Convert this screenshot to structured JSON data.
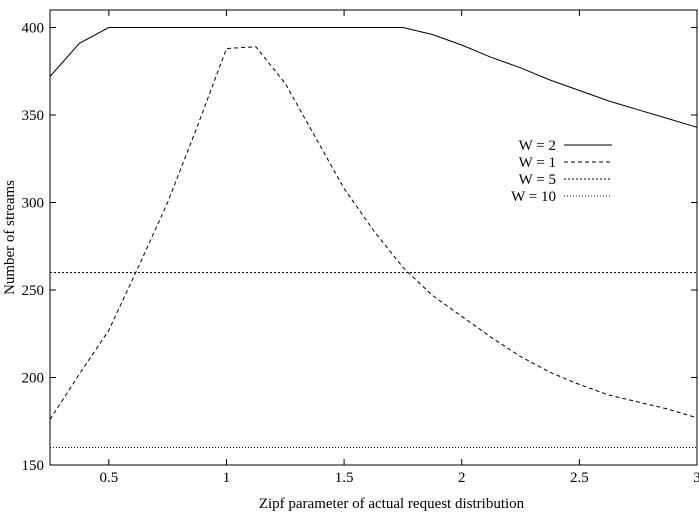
{
  "chart_data": {
    "type": "line",
    "title": "",
    "xlabel": "Zipf parameter of actual request distribution",
    "ylabel": "Number of streams",
    "xlim": [
      0.25,
      3
    ],
    "ylim": [
      150,
      410
    ],
    "xticks": [
      0.5,
      1,
      1.5,
      2,
      2.5,
      3
    ],
    "yticks": [
      150,
      200,
      250,
      300,
      350,
      400
    ],
    "grid": false,
    "legend_position": "top-right",
    "series": [
      {
        "name": "W = 2",
        "style": "solid",
        "color": "#000000",
        "x": [
          0.25,
          0.375,
          0.5,
          0.75,
          1.0,
          1.25,
          1.5,
          1.75,
          1.875,
          2.0,
          2.125,
          2.25,
          2.375,
          2.5,
          2.625,
          2.75,
          2.875,
          3.0
        ],
        "y": [
          372,
          391,
          400,
          400,
          400,
          400,
          400,
          400,
          396,
          390,
          383,
          377,
          370,
          364,
          358,
          353,
          348,
          343
        ]
      },
      {
        "name": "W = 1",
        "style": "dashed",
        "color": "#000000",
        "x": [
          0.25,
          0.375,
          0.5,
          0.625,
          0.75,
          0.875,
          1.0,
          1.125,
          1.25,
          1.375,
          1.5,
          1.625,
          1.75,
          1.875,
          2.0,
          2.125,
          2.25,
          2.375,
          2.5,
          2.625,
          2.75,
          2.875,
          3.0
        ],
        "y": [
          176,
          202,
          227,
          263,
          300,
          343,
          388,
          389,
          368,
          338,
          308,
          284,
          263,
          247,
          235,
          223,
          212,
          203,
          196,
          190,
          186,
          182,
          177
        ]
      },
      {
        "name": "W = 5",
        "style": "dotted",
        "color": "#000000",
        "x": [
          0.25,
          3.0
        ],
        "y": [
          260,
          260
        ]
      },
      {
        "name": "W = 10",
        "style": "dotted-fine",
        "color": "#000000",
        "x": [
          0.25,
          3.0
        ],
        "y": [
          160,
          160
        ]
      }
    ]
  }
}
